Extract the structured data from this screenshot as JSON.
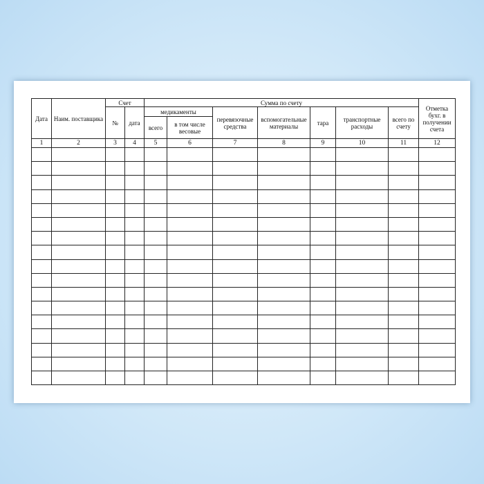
{
  "table": {
    "headers": {
      "date": "Дата",
      "supplier": "Наим. поставщика",
      "invoice": "Счет",
      "invoice_no": "№",
      "invoice_date": "дата",
      "sum": "Сумма по счету",
      "medicines": "медикаменты",
      "med_total": "всего",
      "med_weight": "в том числе весовые",
      "dressings": "перевязочные средства",
      "auxiliary": "вспомогательные материалы",
      "tare": "тара",
      "transport": "транспортные расходы",
      "total": "всего по счету",
      "mark": "Отметка бухг. в получении счета"
    },
    "column_numbers": [
      "1",
      "2",
      "3",
      "4",
      "5",
      "6",
      "7",
      "8",
      "9",
      "10",
      "11",
      "12"
    ],
    "empty_rows": 17
  }
}
